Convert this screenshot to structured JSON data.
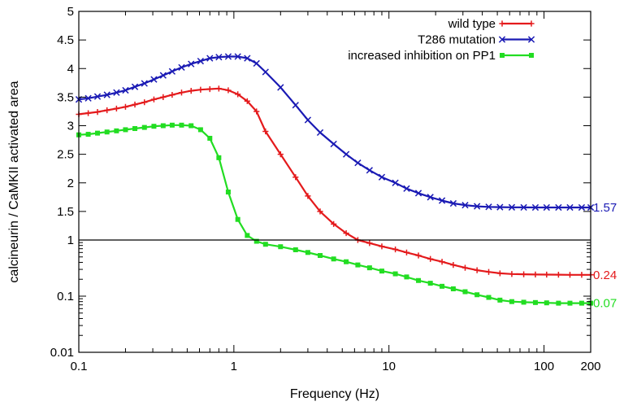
{
  "chart_data": {
    "type": "line",
    "title": "",
    "xlabel": "Frequency (Hz)",
    "ylabel": "calcineurin / CaMKII activated area",
    "x_scale": "log",
    "xlim": [
      0.1,
      200
    ],
    "x_ticks": [
      0.1,
      1,
      10,
      100,
      200
    ],
    "x_tick_labels": [
      "0.1",
      "1",
      "10",
      "100",
      "200"
    ],
    "y_scale": "log below 1, linear from 1 to 5",
    "ylim": [
      0.01,
      5
    ],
    "y_ticks_lower": [
      0.01,
      0.1,
      1
    ],
    "y_tick_labels_lower": [
      "0.01",
      "0.1",
      "1"
    ],
    "y_ticks_upper": [
      1.5,
      2,
      2.5,
      3,
      3.5,
      4,
      4.5,
      5
    ],
    "y_tick_labels_upper": [
      "1.5",
      "2",
      "2.5",
      "3",
      "3.5",
      "4",
      "4.5",
      "5"
    ],
    "grid": false,
    "legend_position": "top-right",
    "x": [
      0.1,
      0.115,
      0.132,
      0.152,
      0.175,
      0.2,
      0.23,
      0.265,
      0.305,
      0.35,
      0.4,
      0.46,
      0.53,
      0.61,
      0.7,
      0.8,
      0.92,
      1.06,
      1.22,
      1.4,
      1.6,
      2.0,
      2.5,
      3.0,
      3.6,
      4.4,
      5.3,
      6.3,
      7.5,
      9.0,
      11,
      13,
      15.5,
      18.5,
      22,
      26,
      31,
      37,
      44,
      52,
      62,
      74,
      88,
      104,
      124,
      147,
      175,
      200
    ],
    "series": [
      {
        "name": "wild type",
        "color": "#e41a1c",
        "marker": "plus",
        "values": [
          3.2,
          3.22,
          3.24,
          3.27,
          3.3,
          3.33,
          3.37,
          3.41,
          3.46,
          3.5,
          3.54,
          3.58,
          3.61,
          3.63,
          3.64,
          3.65,
          3.62,
          3.55,
          3.43,
          3.25,
          2.9,
          2.5,
          2.1,
          1.77,
          1.5,
          1.28,
          1.12,
          1.0,
          0.88,
          0.77,
          0.68,
          0.6,
          0.53,
          0.46,
          0.41,
          0.36,
          0.32,
          0.29,
          0.27,
          0.255,
          0.248,
          0.245,
          0.243,
          0.242,
          0.241,
          0.24,
          0.24,
          0.24
        ]
      },
      {
        "name": "T286 mutation",
        "color": "#1a1ab4",
        "marker": "cross",
        "values": [
          3.46,
          3.48,
          3.51,
          3.54,
          3.58,
          3.62,
          3.68,
          3.74,
          3.81,
          3.88,
          3.95,
          4.02,
          4.08,
          4.13,
          4.18,
          4.2,
          4.21,
          4.21,
          4.18,
          4.09,
          3.94,
          3.67,
          3.36,
          3.1,
          2.88,
          2.68,
          2.5,
          2.35,
          2.22,
          2.1,
          2.0,
          1.9,
          1.82,
          1.75,
          1.69,
          1.64,
          1.61,
          1.59,
          1.58,
          1.575,
          1.572,
          1.571,
          1.57,
          1.57,
          1.57,
          1.57,
          1.57,
          1.57
        ]
      },
      {
        "name": "increased inhibition on PP1",
        "color": "#22dd22",
        "marker": "square",
        "values": [
          2.84,
          2.85,
          2.87,
          2.89,
          2.91,
          2.93,
          2.95,
          2.97,
          2.99,
          3.0,
          3.01,
          3.01,
          3.0,
          2.93,
          2.78,
          2.44,
          1.84,
          1.36,
          1.08,
          0.95,
          0.84,
          0.76,
          0.67,
          0.6,
          0.53,
          0.46,
          0.41,
          0.36,
          0.32,
          0.28,
          0.25,
          0.22,
          0.19,
          0.17,
          0.15,
          0.135,
          0.12,
          0.106,
          0.095,
          0.085,
          0.08,
          0.078,
          0.077,
          0.076,
          0.075,
          0.075,
          0.075,
          0.075
        ]
      }
    ],
    "end_labels": [
      {
        "text": "1.57",
        "value": 1.57,
        "color": "#1a1ab4"
      },
      {
        "text": "0.24",
        "value": 0.24,
        "color": "#e41a1c"
      },
      {
        "text": "0.07",
        "value": 0.075,
        "color": "#22dd22"
      }
    ]
  }
}
